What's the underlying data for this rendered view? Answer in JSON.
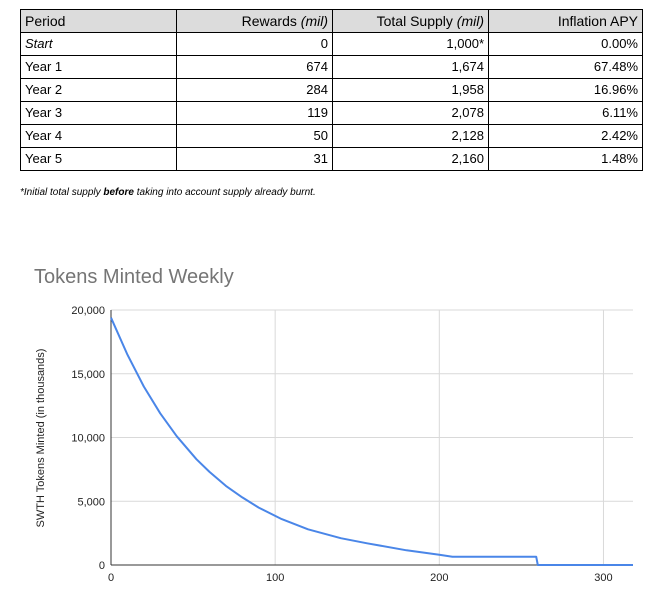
{
  "table": {
    "headers": {
      "period": "Period",
      "rewards_prefix": "Rewards ",
      "rewards_unit": "(mil)",
      "supply_prefix": "Total Supply ",
      "supply_unit": "(mil)",
      "apy": "Inflation APY"
    },
    "rows": [
      {
        "period": "Start",
        "rewards": "0",
        "supply": "1,000*",
        "apy": "0.00%"
      },
      {
        "period": "Year 1",
        "rewards": "674",
        "supply": "1,674",
        "apy": "67.48%"
      },
      {
        "period": "Year 2",
        "rewards": "284",
        "supply": "1,958",
        "apy": "16.96%"
      },
      {
        "period": "Year 3",
        "rewards": "119",
        "supply": "2,078",
        "apy": "6.11%"
      },
      {
        "period": "Year 4",
        "rewards": "50",
        "supply": "2,128",
        "apy": "2.42%"
      },
      {
        "period": "Year 5",
        "rewards": "31",
        "supply": "2,160",
        "apy": "1.48%"
      }
    ],
    "footnote": {
      "before": "*Initial total supply ",
      "bold": "before",
      "after": " taking into account supply already burnt."
    }
  },
  "chart_data": {
    "type": "line",
    "title": "Tokens Minted Weekly",
    "xlabel": "",
    "ylabel": "SWTH Tokens Minted (in thousands)",
    "xlim": [
      0,
      318
    ],
    "ylim": [
      0,
      20000
    ],
    "x_ticks": [
      0,
      100,
      200,
      300
    ],
    "y_ticks": [
      0,
      5000,
      10000,
      15000,
      20000
    ],
    "x_tick_labels": [
      "0",
      "100",
      "200",
      "300"
    ],
    "y_tick_labels": [
      "0",
      "5,000",
      "10,000",
      "15,000",
      "20,000"
    ],
    "grid": true,
    "line_color": "#4a86e8",
    "series": [
      {
        "x": [
          0,
          10,
          20,
          30,
          40,
          52,
          60,
          70,
          80,
          90,
          104,
          120,
          140,
          156,
          180,
          200,
          208,
          230,
          255,
          259,
          260,
          280,
          300,
          318
        ],
        "y": [
          19400,
          16500,
          14000,
          11900,
          10100,
          8300,
          7300,
          6200,
          5300,
          4500,
          3600,
          2800,
          2100,
          1700,
          1150,
          800,
          650,
          650,
          650,
          650,
          0,
          0,
          0,
          0
        ]
      }
    ]
  }
}
